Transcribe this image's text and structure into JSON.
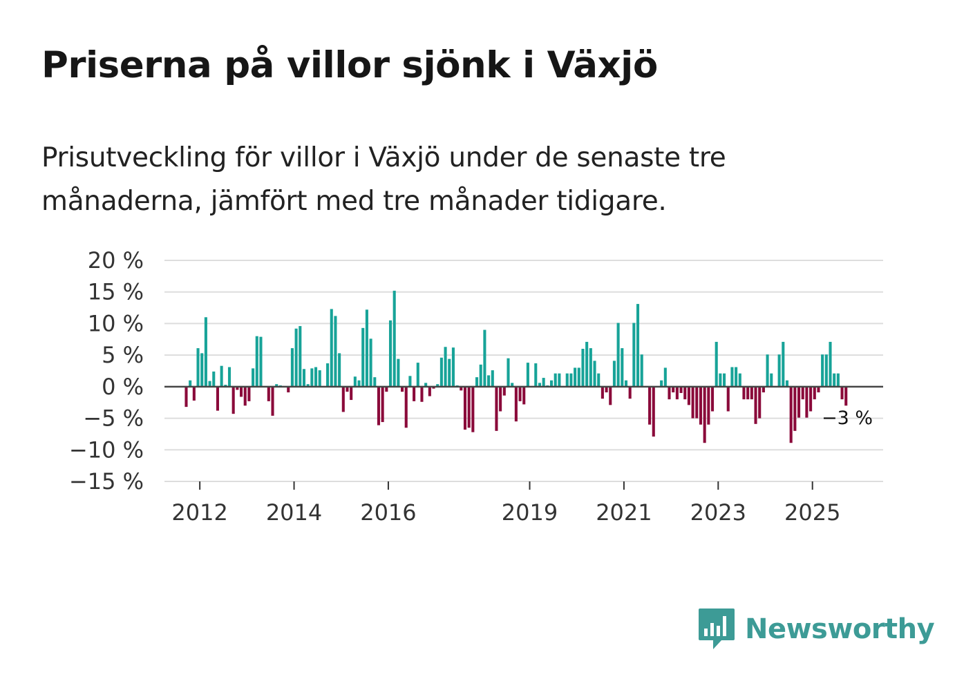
{
  "title": "Priserna på villor sjönk i Växjö",
  "subtitle": "Prisutveckling för villor i Växjö under de senaste tre månaderna, jämfört med tre månader tidigare.",
  "brand": {
    "name": "Newsworthy",
    "icon": "bar-chart-speech-bubble-icon",
    "color": "#3d9b96"
  },
  "colors": {
    "positive": "#17a398",
    "negative": "#8a0a3a",
    "grid": "#dddddd",
    "zero_line": "#444444"
  },
  "chart_data": {
    "type": "bar",
    "title": "Priserna på villor sjönk i Växjö",
    "xlabel": "",
    "ylabel": "",
    "ylim": [
      -15,
      20
    ],
    "yticks": [
      20,
      15,
      10,
      5,
      0,
      -5,
      -10,
      -15
    ],
    "ytick_labels": [
      "20 %",
      "15 %",
      "10 %",
      "5 %",
      "0 %",
      "−5 %",
      "−10 %",
      "−15 %"
    ],
    "xticks": [
      2012,
      2014,
      2016,
      2019,
      2021,
      2023,
      2025
    ],
    "xtick_labels": [
      "2012",
      "2014",
      "2016",
      "2019",
      "2021",
      "2023",
      "2025"
    ],
    "x_start": 2011.25,
    "x_end": 2026.5,
    "months_per_bar": 1,
    "annotation": {
      "text": "−3 %",
      "value": -3,
      "position": "last bar"
    },
    "values": [
      -3.2,
      1.0,
      -2.2,
      6.1,
      5.3,
      11.0,
      0.9,
      2.4,
      -3.8,
      3.3,
      0.3,
      3.1,
      -4.3,
      -0.5,
      -1.6,
      -3.0,
      -2.3,
      2.9,
      8.0,
      7.9,
      0.1,
      -2.3,
      -4.6,
      0.4,
      0.2,
      0.1,
      -0.9,
      6.1,
      9.2,
      9.6,
      2.8,
      0.4,
      2.9,
      3.1,
      2.6,
      0.1,
      3.7,
      12.3,
      11.2,
      5.3,
      -4.0,
      -0.8,
      -2.1,
      1.6,
      1.0,
      9.3,
      12.2,
      7.6,
      1.5,
      -6.1,
      -5.6,
      -0.8,
      10.5,
      15.2,
      4.4,
      -0.8,
      -6.5,
      1.7,
      -2.3,
      3.8,
      -2.4,
      0.6,
      -1.5,
      -0.3,
      0.4,
      4.6,
      6.3,
      4.4,
      6.2,
      0.2,
      -0.6,
      -6.8,
      -6.5,
      -7.2,
      1.5,
      3.5,
      9.0,
      1.8,
      2.6,
      -7.0,
      -3.9,
      -1.4,
      4.5,
      0.6,
      -5.5,
      -2.3,
      -2.8,
      3.8,
      0.1,
      3.7,
      0.6,
      1.4,
      0.2,
      1.0,
      2.1,
      2.1,
      0.1,
      2.1,
      2.1,
      3.0,
      3.0,
      6.0,
      7.1,
      6.1,
      4.1,
      2.1,
      -1.9,
      -0.9,
      -2.9,
      4.1,
      10.1,
      6.1,
      1.0,
      -1.9,
      10.1,
      13.1,
      5.1,
      0.1,
      -6.0,
      -7.9,
      0.1,
      1.0,
      3.0,
      -2.0,
      -0.9,
      -2.0,
      -1.0,
      -2.0,
      -2.9,
      -5.0,
      -5.0,
      -6.0,
      -8.9,
      -6.0,
      -3.9,
      7.1,
      2.1,
      2.1,
      -3.9,
      3.1,
      3.1,
      2.1,
      -2.0,
      -2.0,
      -2.0,
      -5.9,
      -5.0,
      -0.9,
      5.1,
      2.1,
      0.1,
      5.1,
      7.1,
      1.0,
      -8.9,
      -7.0,
      -4.9,
      -2.0,
      -4.9,
      -3.9,
      -2.0,
      -0.9,
      5.1,
      5.1,
      7.1,
      2.1,
      2.1,
      -2.0,
      -3.0
    ]
  }
}
